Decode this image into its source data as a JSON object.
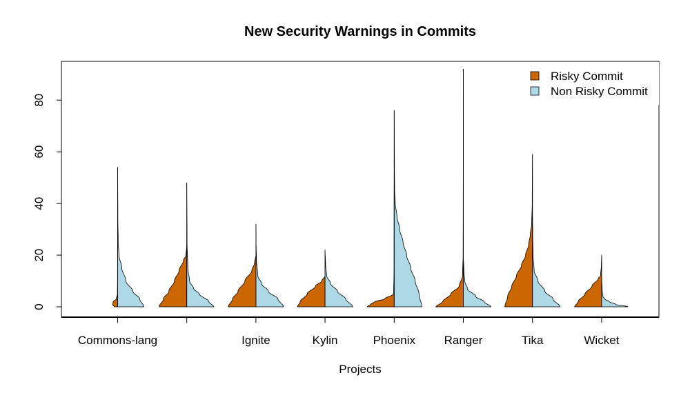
{
  "chart_data": {
    "type": "split-violin",
    "title": "New Security Warnings in Commits",
    "xlabel": "Projects",
    "ylabel": "",
    "ylim": [
      -4,
      95
    ],
    "yticks": [
      0,
      20,
      40,
      60,
      80
    ],
    "legend_position": "top-right",
    "series": [
      {
        "name": "Risky Commit",
        "color": "#CC6600"
      },
      {
        "name": "Non Risky Commit",
        "color": "#ADD8E6"
      }
    ],
    "categories": [
      "Commons-lang",
      "",
      "Ignite",
      "Kylin",
      "Phoenix",
      "Ranger",
      "Tika",
      "Wicket"
    ],
    "groups": [
      {
        "risky": {
          "max": 32,
          "profile": [
            [
              0,
              0.12
            ],
            [
              0.8,
              0.18
            ],
            [
              2,
              0.16
            ],
            [
              3,
              0.05
            ],
            [
              5,
              0.01
            ],
            [
              10,
              0.004
            ],
            [
              20,
              0.002
            ],
            [
              32,
              0
            ]
          ]
        },
        "non_risky": {
          "max": 54,
          "profile": [
            [
              0,
              0.95
            ],
            [
              3,
              0.8
            ],
            [
              6,
              0.55
            ],
            [
              10,
              0.3
            ],
            [
              15,
              0.15
            ],
            [
              20,
              0.05
            ],
            [
              25,
              0.02
            ],
            [
              35,
              0.008
            ],
            [
              54,
              0
            ]
          ]
        }
      },
      {
        "risky": {
          "max": 24,
          "profile": [
            [
              0,
              1.0
            ],
            [
              3,
              0.85
            ],
            [
              6,
              0.65
            ],
            [
              10,
              0.45
            ],
            [
              14,
              0.28
            ],
            [
              18,
              0.12
            ],
            [
              20,
              0.03
            ],
            [
              24,
              0
            ]
          ]
        },
        "non_risky": {
          "max": 48,
          "profile": [
            [
              0,
              0.98
            ],
            [
              2,
              0.8
            ],
            [
              5,
              0.45
            ],
            [
              7,
              0.25
            ],
            [
              10,
              0.1
            ],
            [
              15,
              0.04
            ],
            [
              25,
              0.01
            ],
            [
              48,
              0
            ]
          ]
        }
      },
      {
        "risky": {
          "max": 20,
          "profile": [
            [
              0,
              1.0
            ],
            [
              3,
              0.85
            ],
            [
              6,
              0.65
            ],
            [
              10,
              0.4
            ],
            [
              14,
              0.15
            ],
            [
              17,
              0.05
            ],
            [
              20,
              0
            ]
          ]
        },
        "non_risky": {
          "max": 32,
          "profile": [
            [
              0,
              1.0
            ],
            [
              3,
              0.8
            ],
            [
              6,
              0.45
            ],
            [
              9,
              0.2
            ],
            [
              12,
              0.07
            ],
            [
              18,
              0.02
            ],
            [
              25,
              0.005
            ],
            [
              32,
              0
            ]
          ]
        }
      },
      {
        "risky": {
          "max": 12,
          "profile": [
            [
              0,
              1.0
            ],
            [
              2,
              0.9
            ],
            [
              5,
              0.65
            ],
            [
              8,
              0.35
            ],
            [
              10,
              0.12
            ],
            [
              12,
              0
            ]
          ]
        },
        "non_risky": {
          "max": 22,
          "profile": [
            [
              0,
              1.0
            ],
            [
              3,
              0.75
            ],
            [
              6,
              0.45
            ],
            [
              9,
              0.2
            ],
            [
              12,
              0.06
            ],
            [
              16,
              0.02
            ],
            [
              22,
              0
            ]
          ]
        }
      },
      {
        "risky": {
          "max": 47,
          "profile": [
            [
              0,
              0.98
            ],
            [
              1,
              0.85
            ],
            [
              2,
              0.7
            ],
            [
              3,
              0.35
            ],
            [
              5,
              0.02
            ],
            [
              15,
              0.005
            ],
            [
              35,
              0.003
            ],
            [
              47,
              0
            ]
          ]
        },
        "non_risky": {
          "max": 76,
          "profile": [
            [
              0,
              1.0
            ],
            [
              5,
              0.9
            ],
            [
              10,
              0.76
            ],
            [
              15,
              0.6
            ],
            [
              20,
              0.45
            ],
            [
              25,
              0.32
            ],
            [
              30,
              0.2
            ],
            [
              35,
              0.1
            ],
            [
              40,
              0.04
            ],
            [
              45,
              0.015
            ],
            [
              55,
              0.008
            ],
            [
              65,
              0.004
            ],
            [
              76,
              0
            ]
          ]
        }
      },
      {
        "risky": {
          "max": 92,
          "profile": [
            [
              0,
              1.0
            ],
            [
              2,
              0.75
            ],
            [
              5,
              0.45
            ],
            [
              8,
              0.15
            ],
            [
              12,
              0.03
            ],
            [
              20,
              0.008
            ],
            [
              40,
              0.004
            ],
            [
              60,
              0.002
            ],
            [
              92,
              0
            ]
          ]
        },
        "non_risky": {
          "max": 20,
          "profile": [
            [
              0,
              1.0
            ],
            [
              2,
              0.75
            ],
            [
              4,
              0.45
            ],
            [
              7,
              0.15
            ],
            [
              10,
              0.05
            ],
            [
              14,
              0.02
            ],
            [
              20,
              0
            ]
          ]
        }
      },
      {
        "risky": {
          "max": 59,
          "profile": [
            [
              0,
              1.0
            ],
            [
              4,
              0.9
            ],
            [
              8,
              0.75
            ],
            [
              12,
              0.58
            ],
            [
              16,
              0.4
            ],
            [
              20,
              0.25
            ],
            [
              24,
              0.14
            ],
            [
              28,
              0.08
            ],
            [
              32,
              0.03
            ],
            [
              40,
              0.01
            ],
            [
              50,
              0.005
            ],
            [
              59,
              0
            ]
          ]
        },
        "non_risky": {
          "max": 35,
          "profile": [
            [
              0,
              1.0
            ],
            [
              3,
              0.75
            ],
            [
              6,
              0.45
            ],
            [
              10,
              0.2
            ],
            [
              14,
              0.06
            ],
            [
              20,
              0.02
            ],
            [
              28,
              0.008
            ],
            [
              35,
              0
            ]
          ]
        }
      },
      {
        "risky": {
          "max": 20,
          "profile": [
            [
              0,
              0.98
            ],
            [
              2,
              0.85
            ],
            [
              5,
              0.6
            ],
            [
              8,
              0.35
            ],
            [
              11,
              0.12
            ],
            [
              12,
              0.04
            ],
            [
              16,
              0.01
            ],
            [
              20,
              0
            ]
          ]
        },
        "non_risky": {
          "max": 12,
          "profile": [
            [
              0,
              0.95
            ],
            [
              1,
              0.5
            ],
            [
              2,
              0.28
            ],
            [
              3,
              0.12
            ],
            [
              4,
              0.05
            ],
            [
              6,
              0.02
            ],
            [
              12,
              0
            ]
          ]
        }
      }
    ]
  }
}
